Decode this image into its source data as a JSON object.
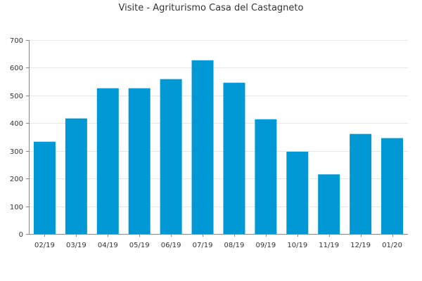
{
  "chart_data": {
    "type": "bar",
    "title": "Visite - Agriturismo Casa del Castagneto",
    "xlabel": "",
    "ylabel": "",
    "categories": [
      "02/19",
      "03/19",
      "04/19",
      "05/19",
      "06/19",
      "07/19",
      "08/19",
      "09/19",
      "10/19",
      "11/19",
      "12/19",
      "01/20"
    ],
    "values": [
      333,
      417,
      526,
      526,
      559,
      627,
      546,
      414,
      297,
      215,
      361,
      346
    ],
    "ylim": [
      0,
      700
    ],
    "yticks": [
      0,
      100,
      200,
      300,
      400,
      500,
      600,
      700
    ],
    "grid": true,
    "legend": "none",
    "colors": {
      "bar": "#0099d6",
      "grid": "#e6e6e6",
      "axis": "#888888",
      "text": "#333333"
    }
  }
}
